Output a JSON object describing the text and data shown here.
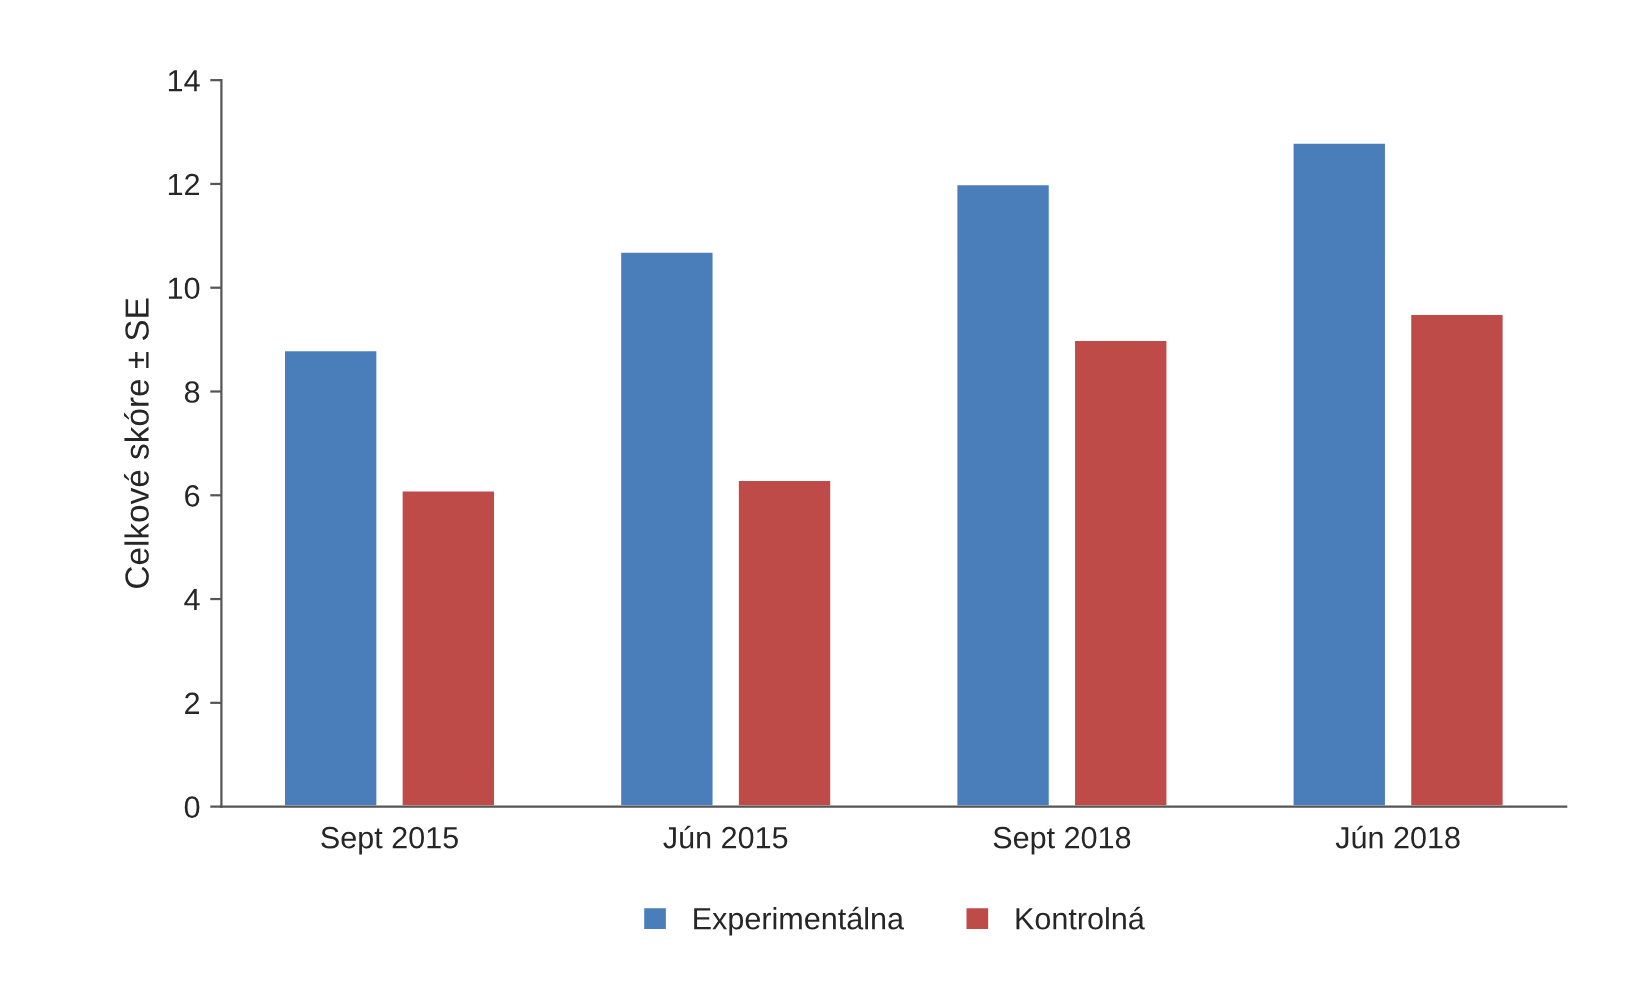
{
  "chart_data": {
    "type": "bar",
    "ylabel": "Celkové skóre ± SE",
    "categories": [
      "Sept 2015",
      "Jún 2015",
      "Sept 2018",
      "Jún 2018"
    ],
    "series": [
      {
        "name": "Experimentálna",
        "color": "#4a7ebb",
        "values": [
          8.8,
          10.7,
          12.0,
          12.8
        ]
      },
      {
        "name": "Kontrolná",
        "color": "#be4b48",
        "values": [
          6.1,
          6.3,
          9.0,
          9.5
        ]
      }
    ],
    "ylim": [
      0,
      14
    ],
    "yticks": [
      0,
      2,
      4,
      6,
      8,
      10,
      12,
      14
    ],
    "grid": false,
    "legend": "bottom"
  }
}
